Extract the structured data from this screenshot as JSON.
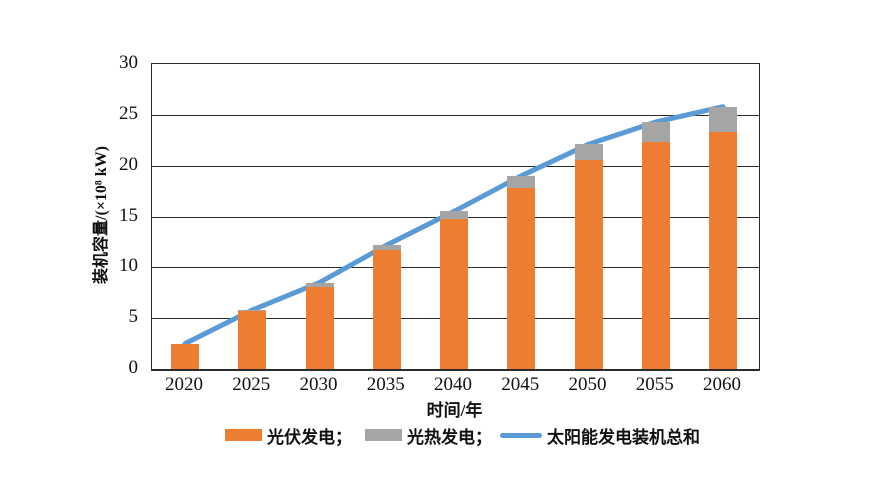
{
  "chart_data": {
    "type": "bar",
    "subtype": "stacked-bar-with-line",
    "categories": [
      "2020",
      "2025",
      "2030",
      "2035",
      "2040",
      "2045",
      "2050",
      "2055",
      "2060"
    ],
    "series": [
      {
        "name": "光伏发电",
        "type": "bar",
        "color": "#ED7D31",
        "values": [
          2.5,
          5.7,
          8.1,
          11.7,
          14.8,
          17.8,
          20.6,
          22.3,
          23.3
        ]
      },
      {
        "name": "光热发电",
        "type": "bar",
        "color": "#A5A5A5",
        "values": [
          0,
          0.1,
          0.4,
          0.5,
          0.7,
          1.2,
          1.5,
          2.0,
          2.5
        ]
      },
      {
        "name": "太阳能发电装机总和",
        "type": "line",
        "color": "#5B9BD5",
        "values": [
          2.5,
          5.8,
          8.5,
          12.2,
          15.5,
          19.0,
          22.1,
          24.3,
          25.8
        ]
      }
    ],
    "title": "",
    "xlabel": "时间/年",
    "ylabel": "装机容量/(×10⁸ kW)",
    "ylim": [
      0,
      30
    ],
    "yticks": [
      0,
      5,
      10,
      15,
      20,
      25,
      30
    ],
    "grid": true,
    "legend_position": "bottom",
    "legend": [
      {
        "label": "光伏发电；",
        "swatch": "bar",
        "color": "#ED7D31"
      },
      {
        "label": "光热发电；",
        "swatch": "bar",
        "color": "#A5A5A5"
      },
      {
        "label": "太阳能发电装机总和",
        "swatch": "line",
        "color": "#5B9BD5"
      }
    ]
  },
  "style": {
    "axis_color": "#2b2b2b",
    "text_color": "#111111",
    "background": "#ffffff"
  }
}
